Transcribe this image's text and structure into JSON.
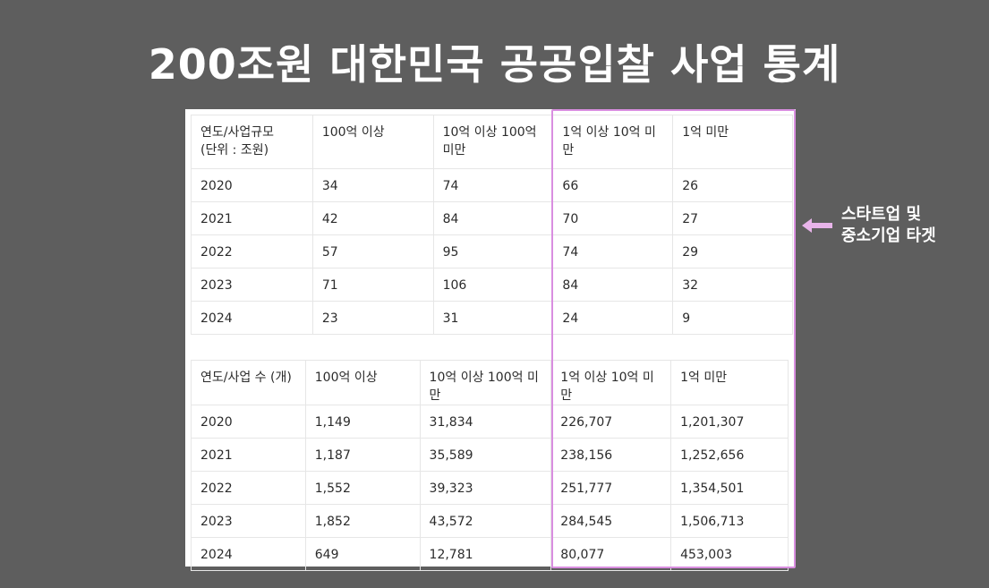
{
  "title": "200조원 대한민국 공공입찰 사업 통계",
  "colors": {
    "background": "#5e5e5e",
    "highlight": "#d98ee0",
    "arrow": "#e8b4ea"
  },
  "scale_table": {
    "headers": [
      "연도/사업규모",
      "100억 이상",
      "10억 이상 100억",
      "1억 이상 10억 미만",
      "1억 미만"
    ],
    "header_line2": [
      "(단위 : 조원)",
      "",
      "미만",
      "",
      ""
    ],
    "rows": [
      [
        "2020",
        "34",
        "74",
        "66",
        "26"
      ],
      [
        "2021",
        "42",
        "84",
        "70",
        "27"
      ],
      [
        "2022",
        "57",
        "95",
        "74",
        "29"
      ],
      [
        "2023",
        "71",
        "106",
        "84",
        "32"
      ],
      [
        "2024",
        "23",
        "31",
        "24",
        "9"
      ]
    ]
  },
  "count_table": {
    "headers": [
      "연도/사업 수 (개)",
      "100억 이상",
      "10억 이상 100억 미만",
      "1억 이상 10억 미만",
      "1억 미만"
    ],
    "rows": [
      [
        "2020",
        "1,149",
        "31,834",
        "226,707",
        "1,201,307"
      ],
      [
        "2021",
        "1,187",
        "35,589",
        "238,156",
        "1,252,656"
      ],
      [
        "2022",
        "1,552",
        "39,323",
        "251,777",
        "1,354,501"
      ],
      [
        "2023",
        "1,852",
        "43,572",
        "284,545",
        "1,506,713"
      ],
      [
        "2024",
        "649",
        "12,781",
        "80,077",
        "453,003"
      ]
    ]
  },
  "callout": {
    "line1": "스타트업 및",
    "line2": "중소기업 타겟",
    "icon": "arrow-left-icon"
  }
}
